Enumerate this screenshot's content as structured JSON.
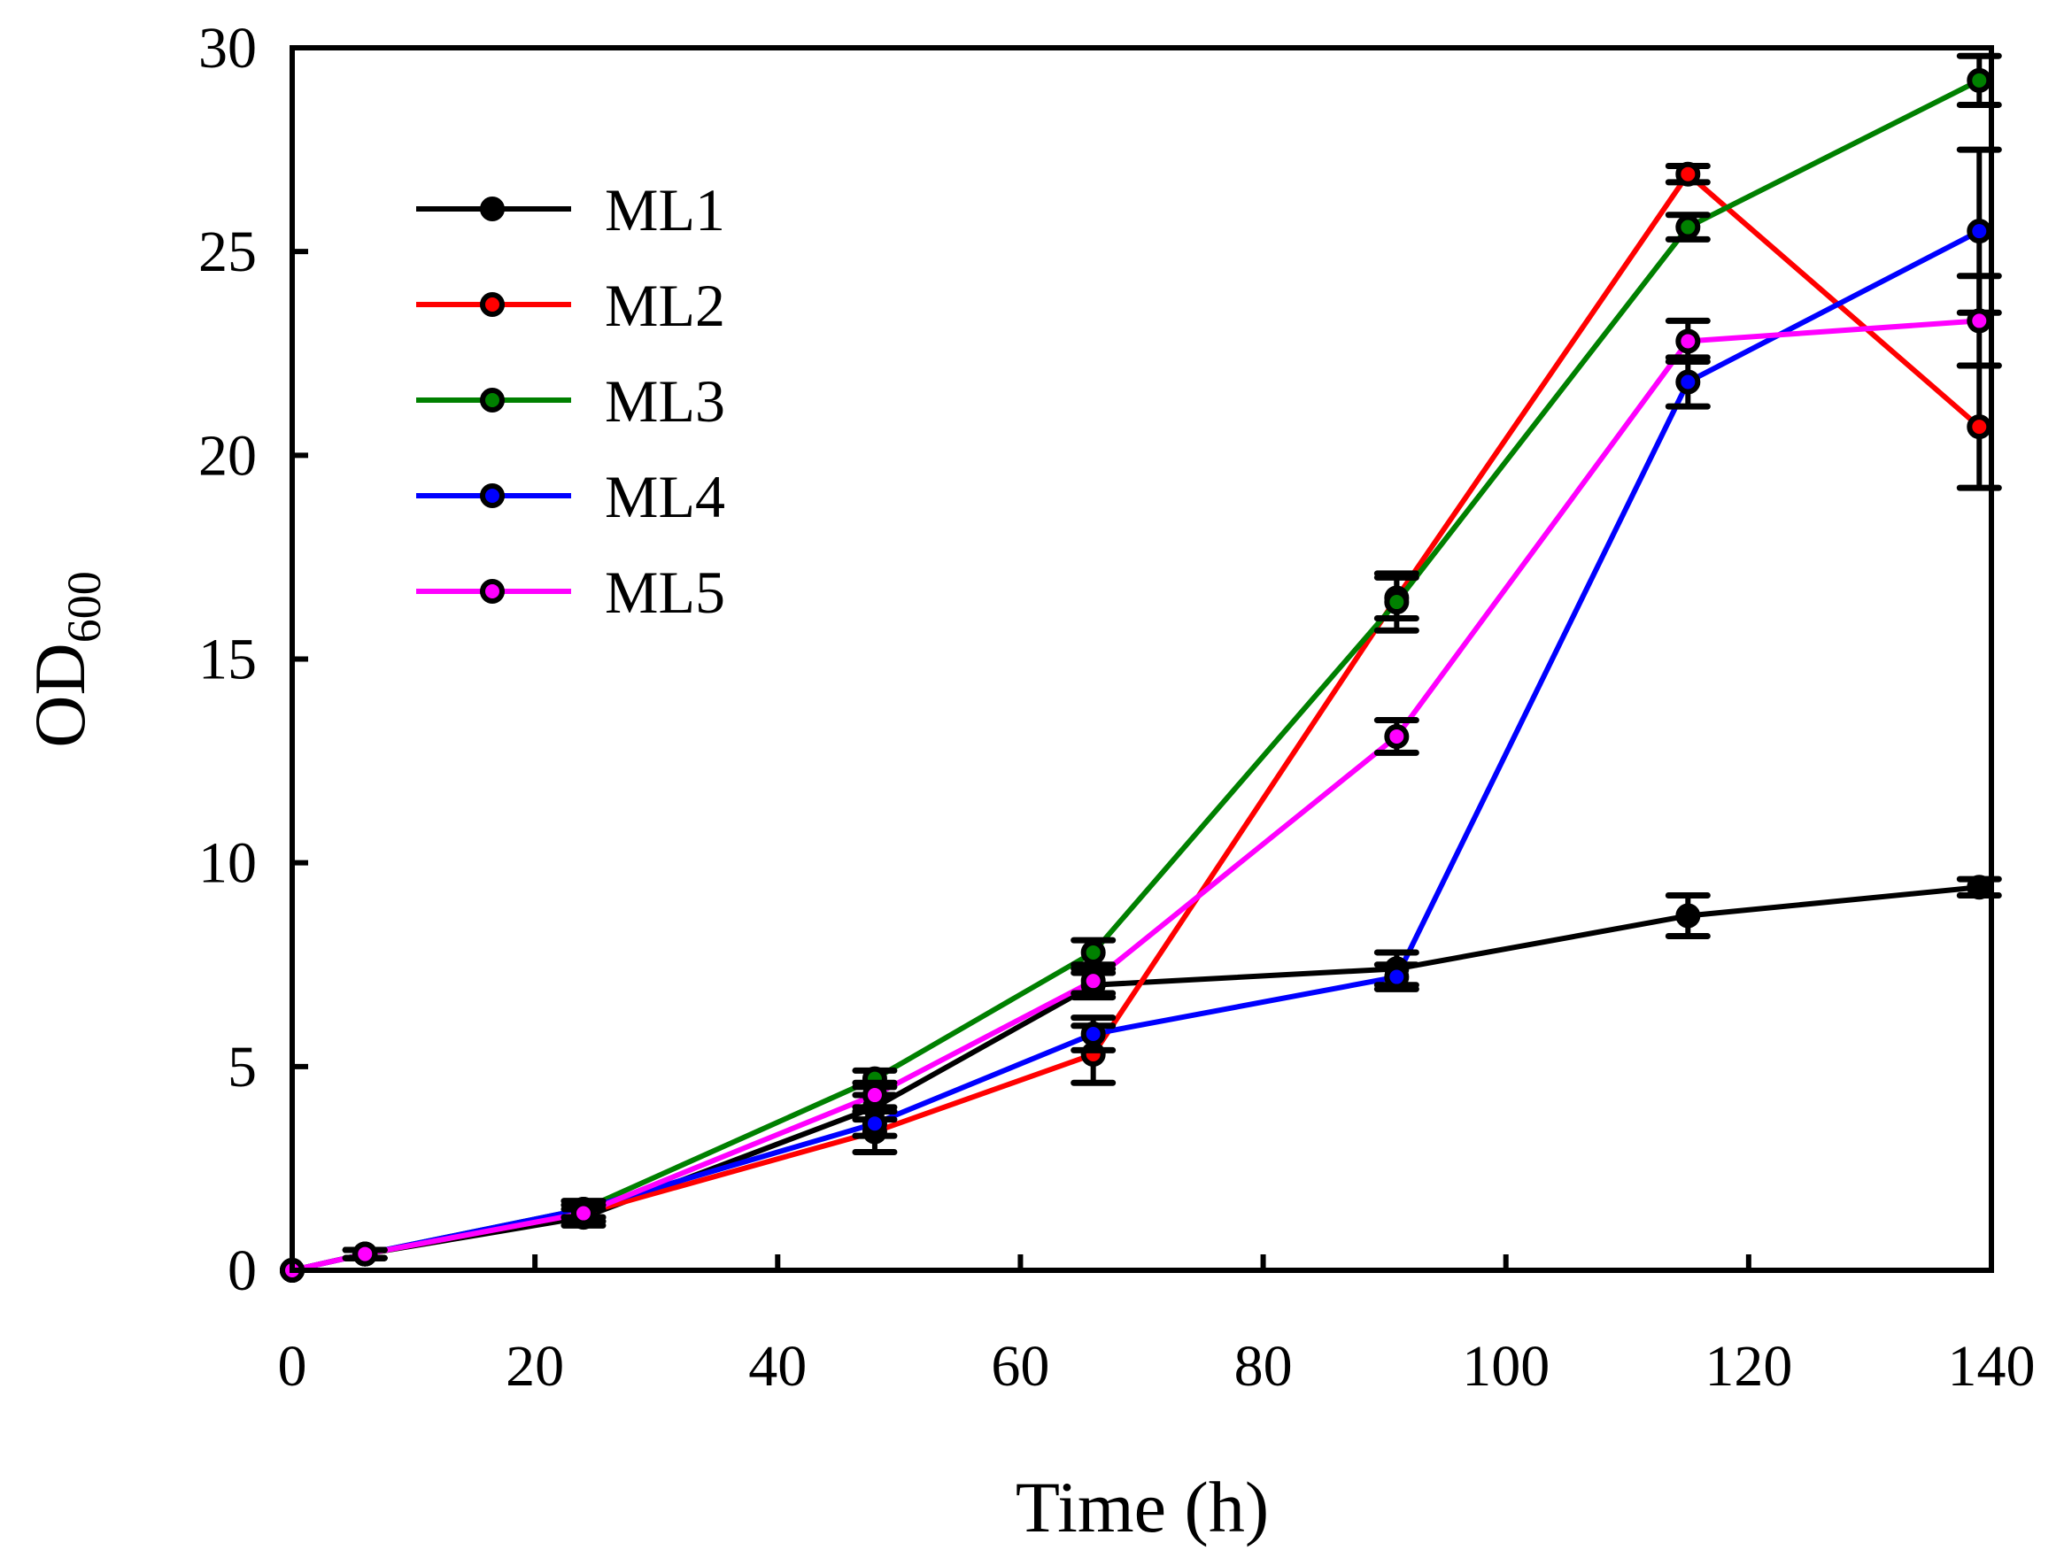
{
  "chart_data": {
    "type": "line",
    "title": "",
    "xlabel": "Time (h)",
    "ylabel_main": "OD",
    "ylabel_sub": "600",
    "xlim": [
      0,
      140
    ],
    "ylim": [
      0,
      30
    ],
    "xticks": [
      0,
      20,
      40,
      60,
      80,
      100,
      120,
      140
    ],
    "yticks": [
      0,
      5,
      10,
      15,
      20,
      25,
      30
    ],
    "grid": false,
    "legend_position": "top-left",
    "x": [
      0,
      6,
      24,
      48,
      66,
      91,
      115,
      139
    ],
    "series": [
      {
        "name": "ML1",
        "color": "#000000",
        "values": [
          0,
          0.4,
          1.3,
          4.0,
          7.0,
          7.4,
          8.7,
          9.4
        ],
        "errors": [
          0,
          0.1,
          0.2,
          0.3,
          0.3,
          0.4,
          0.5,
          0.2
        ]
      },
      {
        "name": "ML2",
        "color": "#ff0000",
        "values": [
          0,
          0.4,
          1.4,
          3.4,
          5.3,
          16.5,
          26.9,
          20.7
        ],
        "errors": [
          0,
          0.1,
          0.2,
          0.5,
          0.7,
          0.5,
          0.2,
          1.5
        ]
      },
      {
        "name": "ML3",
        "color": "#008000",
        "values": [
          0,
          0.4,
          1.5,
          4.7,
          7.8,
          16.4,
          25.6,
          29.2
        ],
        "errors": [
          0,
          0.1,
          0.2,
          0.2,
          0.3,
          0.7,
          0.3,
          0.6
        ]
      },
      {
        "name": "ML4",
        "color": "#0000ff",
        "values": [
          0,
          0.4,
          1.5,
          3.6,
          5.8,
          7.2,
          21.8,
          25.5
        ],
        "errors": [
          0,
          0.1,
          0.2,
          0.3,
          0.4,
          0.3,
          0.6,
          2.0
        ]
      },
      {
        "name": "ML5",
        "color": "#ff00ff",
        "values": [
          0,
          0.4,
          1.4,
          4.3,
          7.1,
          13.1,
          22.8,
          23.3
        ],
        "errors": [
          0,
          0.1,
          0.2,
          0.3,
          0.3,
          0.4,
          0.5,
          1.1
        ]
      }
    ]
  }
}
